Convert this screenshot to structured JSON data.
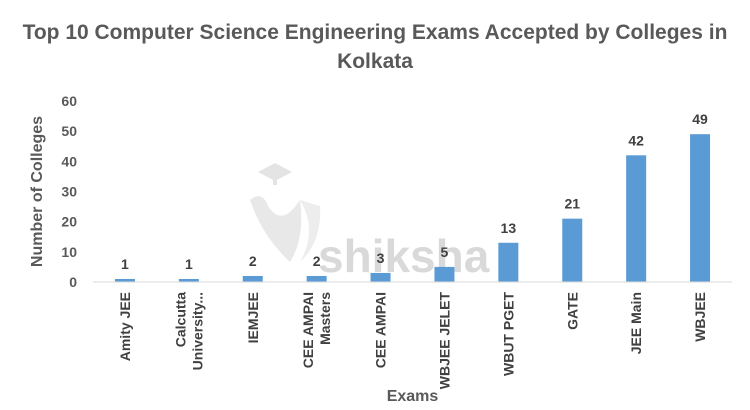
{
  "chart_data": {
    "type": "bar",
    "title": "Top 10 Computer Science Engineering Exams Accepted by Colleges in Kolkata",
    "xlabel": "Exams",
    "ylabel": "Number of Colleges",
    "categories": [
      "Amity JEE",
      "Calcutta University...",
      "IEMJEE",
      "CEE AMPAI Masters",
      "CEE AMPAI",
      "WBJEE JELET",
      "WBUT PGET",
      "GATE",
      "JEE Main",
      "WBJEE"
    ],
    "category_lines": [
      [
        "Amity JEE"
      ],
      [
        "Calcutta",
        "University..."
      ],
      [
        "IEMJEE"
      ],
      [
        "CEE AMPAI",
        "Masters"
      ],
      [
        "CEE AMPAI"
      ],
      [
        "WBJEE JELET"
      ],
      [
        "WBUT PGET"
      ],
      [
        "GATE"
      ],
      [
        "JEE Main"
      ],
      [
        "WBJEE"
      ]
    ],
    "values": [
      1,
      1,
      2,
      2,
      3,
      5,
      13,
      21,
      42,
      49
    ],
    "ylim": [
      0,
      60
    ],
    "yticks": [
      0,
      10,
      20,
      30,
      40,
      50,
      60
    ],
    "grid": false,
    "legend": "none",
    "bar_color": "#5b9bd5"
  },
  "watermark": {
    "text": "shiksha"
  }
}
